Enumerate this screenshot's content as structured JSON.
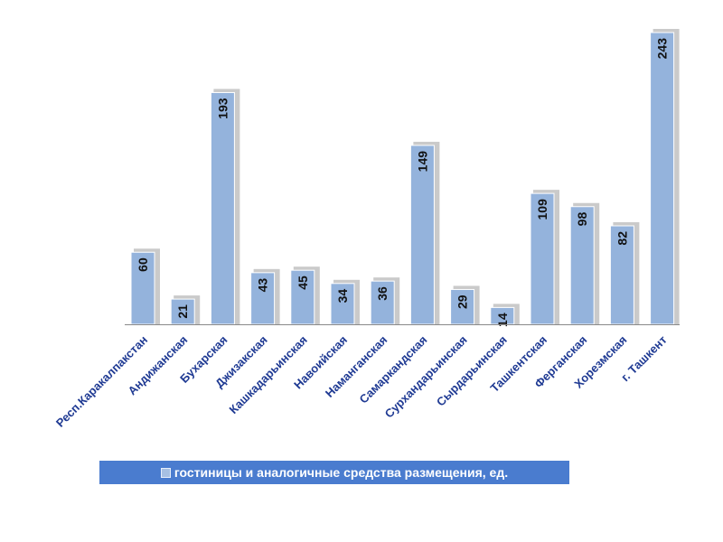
{
  "chart_data": {
    "type": "bar",
    "categories": [
      "Респ.Каракалпакстан",
      "Андижанская",
      "Бухарская",
      "Джизакская",
      "Кашкадарьинская",
      "Навоийская",
      "Наманганская",
      "Самаркандская",
      "Сурхандарьинская",
      "Сырдарьинская",
      "Ташкентская",
      "Ферганская",
      "Хорезмская",
      "г. Ташкент"
    ],
    "series": [
      {
        "name": "гостиницы и аналогичные средства размещения, ед.",
        "values": [
          60,
          21,
          193,
          43,
          45,
          34,
          36,
          149,
          29,
          14,
          109,
          98,
          82,
          243
        ],
        "color": "#94b3dc"
      }
    ],
    "ylim": [
      0,
      243
    ],
    "grid": false,
    "legend_position": "bottom"
  }
}
